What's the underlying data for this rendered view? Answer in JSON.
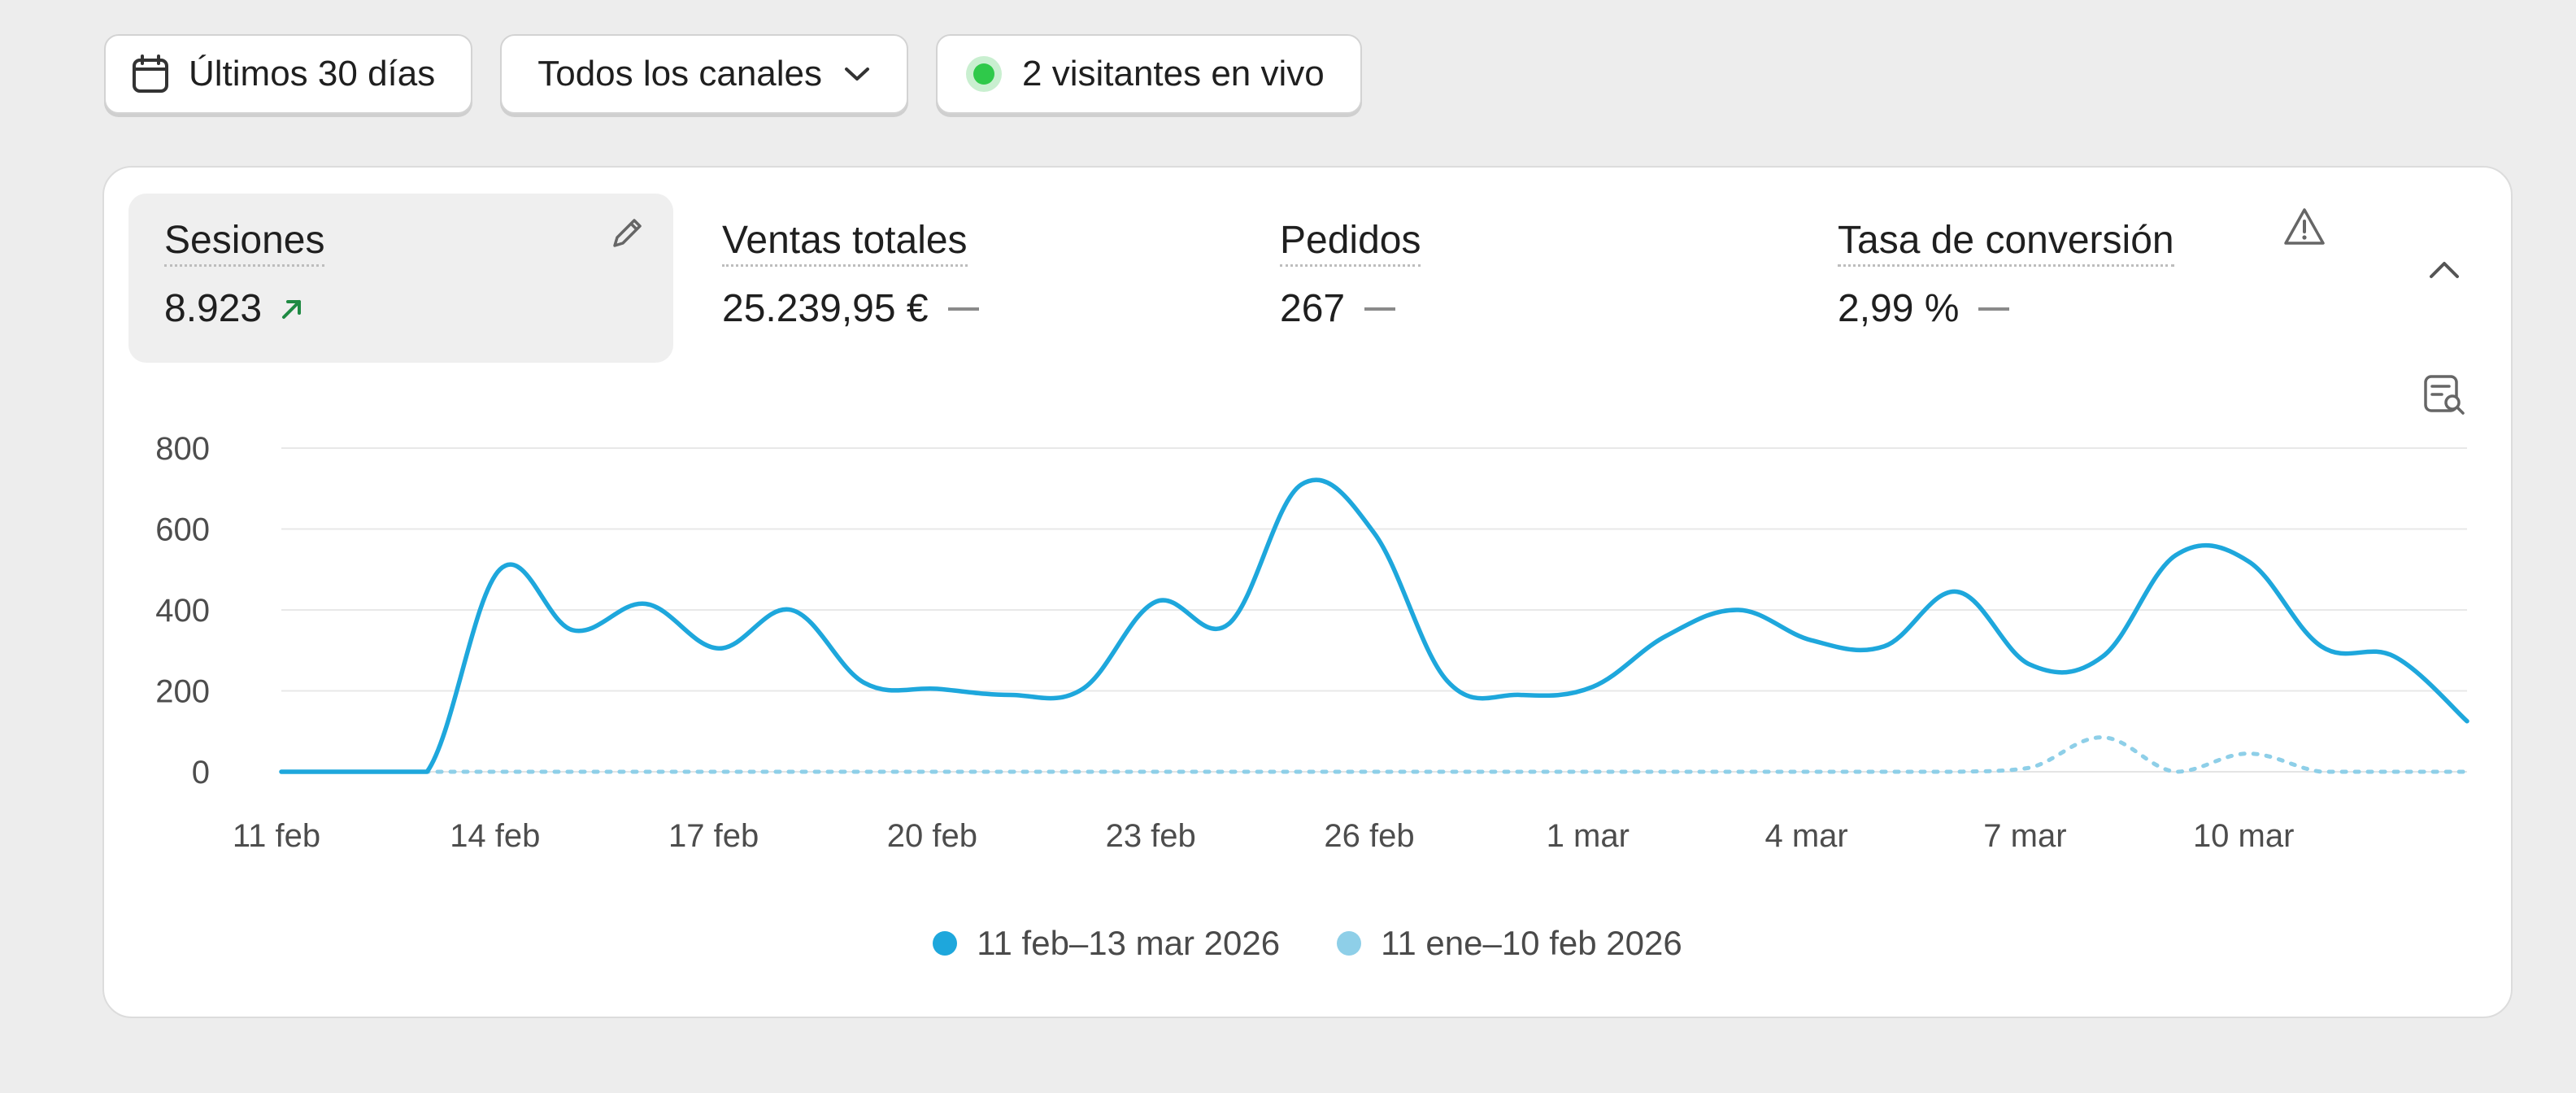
{
  "toolbar": {
    "date_range": "Últimos 30 días",
    "channel": "Todos los canales",
    "live_visitors": "2 visitantes en vivo"
  },
  "metrics": [
    {
      "label": "Sesiones",
      "value": "8.923",
      "trend": "up",
      "active": true
    },
    {
      "label": "Ventas totales",
      "value": "25.239,95 €",
      "trend": "none"
    },
    {
      "label": "Pedidos",
      "value": "267",
      "trend": "none"
    },
    {
      "label": "Tasa de conversión",
      "value": "2,99 %",
      "trend": "none"
    }
  ],
  "icons": {
    "date": "calendar-icon",
    "channel": "chevron-down-icon",
    "edit": "pencil-icon",
    "warning": "warning-triangle-icon",
    "collapse": "chevron-up-icon",
    "details": "search-data-icon",
    "trend_up": "arrow-up-right-icon"
  },
  "colors": {
    "current": "#1ea7dc",
    "previous": "#8ecfe8",
    "live": "#2fc94a",
    "trend_up": "#1f8a43"
  },
  "chart_data": {
    "type": "line",
    "x": [
      "11 feb",
      "12 feb",
      "13 feb",
      "14 feb",
      "15 feb",
      "16 feb",
      "17 feb",
      "18 feb",
      "19 feb",
      "20 feb",
      "21 feb",
      "22 feb",
      "23 feb",
      "24 feb",
      "25 feb",
      "26 feb",
      "27 feb",
      "28 feb",
      "1 mar",
      "2 mar",
      "3 mar",
      "4 mar",
      "5 mar",
      "6 mar",
      "7 mar",
      "8 mar",
      "9 mar",
      "10 mar",
      "11 mar",
      "12 mar",
      "13 mar"
    ],
    "x_tick_labels": [
      "11 feb",
      "14 feb",
      "17 feb",
      "20 feb",
      "23 feb",
      "26 feb",
      "1 mar",
      "4 mar",
      "7 mar",
      "10 mar"
    ],
    "y_ticks": [
      0,
      200,
      400,
      600,
      800
    ],
    "ylim": [
      0,
      800
    ],
    "grid": true,
    "legend_position": "bottom",
    "series": [
      {
        "name": "11 feb–13 mar 2026",
        "style": "solid",
        "values": [
          0,
          0,
          0,
          500,
          350,
          415,
          305,
          400,
          220,
          205,
          190,
          205,
          420,
          365,
          710,
          590,
          225,
          190,
          210,
          335,
          400,
          325,
          310,
          445,
          265,
          285,
          535,
          520,
          310,
          285,
          125
        ]
      },
      {
        "name": "11 ene–10 feb 2026",
        "style": "dotted",
        "values": [
          0,
          0,
          0,
          0,
          0,
          0,
          0,
          0,
          0,
          0,
          0,
          0,
          0,
          0,
          0,
          0,
          0,
          0,
          0,
          0,
          0,
          0,
          0,
          0,
          10,
          85,
          0,
          45,
          0,
          0,
          0
        ]
      }
    ]
  }
}
